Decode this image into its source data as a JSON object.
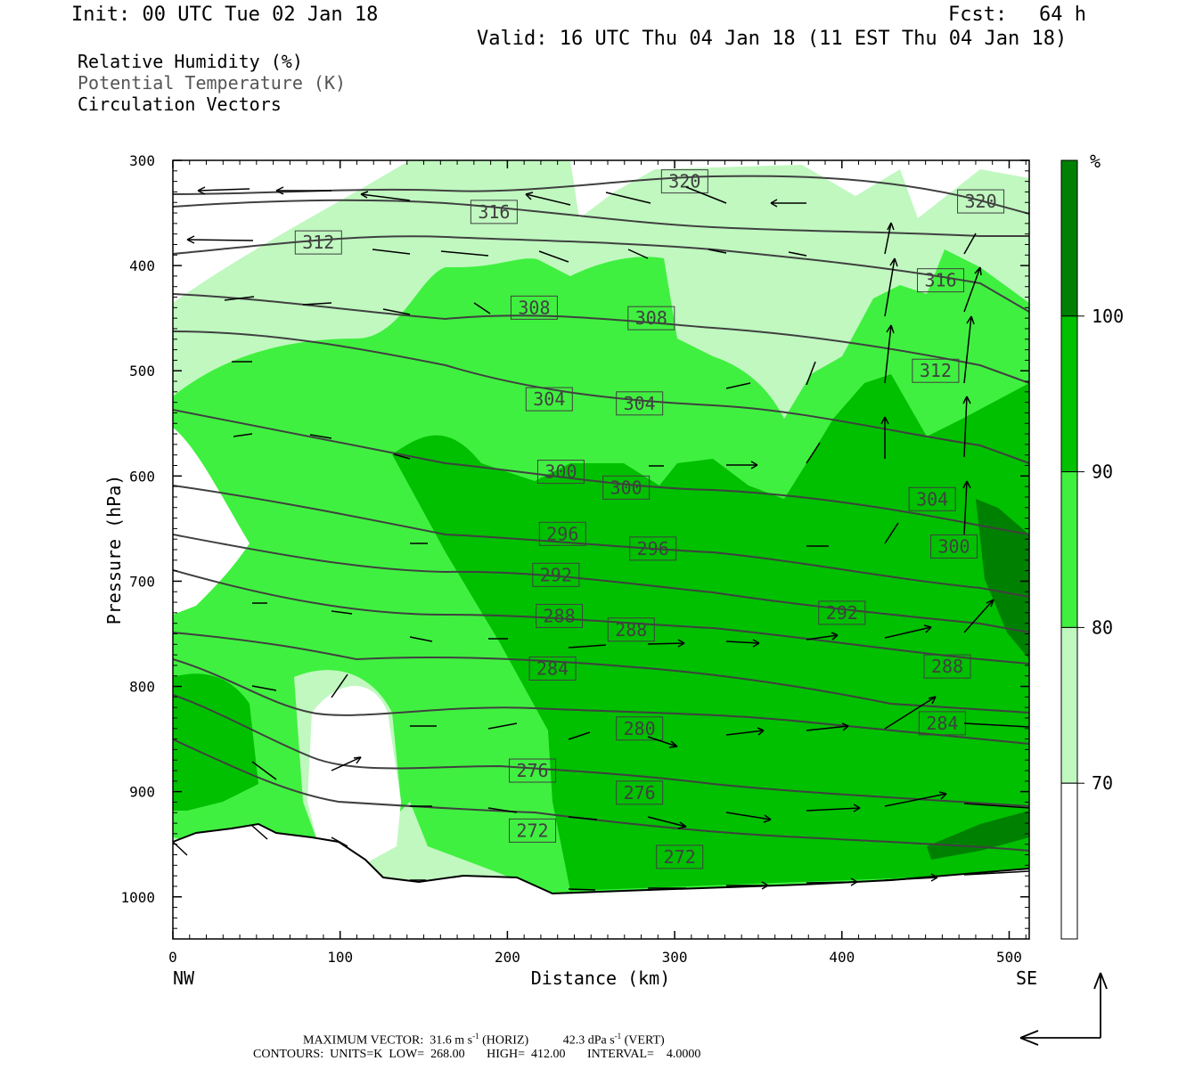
{
  "header": {
    "init": "Init: 00 UTC Tue 02 Jan 18",
    "fcst_label": "Fcst:",
    "fcst_value": "64 h",
    "valid": "Valid: 16 UTC Thu 04 Jan 18 (11 EST Thu 04 Jan 18)"
  },
  "legend": {
    "rh": "Relative Humidity (%)",
    "theta": "Potential Temperature (K)",
    "vectors": "Circulation Vectors"
  },
  "footer": {
    "max_vector_label": "MAXIMUM VECTOR:",
    "horiz_value": "31.6 m s",
    "horiz_tag": "(HORIZ)",
    "vert_value": "42.3 dPa s",
    "vert_tag": "(VERT)",
    "exponent": "-1",
    "contours_line": "CONTOURS:  UNITS=K  LOW=  268.00       HIGH=  412.00       INTERVAL=    4.0000"
  },
  "colors": {
    "rh_70_80": "#c0f8c0",
    "rh_80_90": "#40f040",
    "rh_90_100": "#00c000",
    "rh_100_plus": "#008000",
    "theta_contour": "#404040"
  },
  "chart_data": {
    "type": "heatmap",
    "title": "Relative Humidity (%)",
    "xlabel": "Distance (km)",
    "ylabel": "Pressure (hPa)",
    "xlim": [
      0,
      512
    ],
    "ylim": [
      1040,
      300
    ],
    "x_ticks": [
      "0",
      "100",
      "200",
      "300",
      "400",
      "500"
    ],
    "x_tick_values": [
      0,
      100,
      200,
      300,
      400,
      500
    ],
    "y_ticks": [
      "300",
      "400",
      "500",
      "600",
      "700",
      "800",
      "900",
      "1000"
    ],
    "y_tick_values": [
      300,
      400,
      500,
      600,
      700,
      800,
      900,
      1000
    ],
    "endpoints": {
      "left": "NW",
      "right": "SE"
    },
    "colorbar": {
      "unit": "%",
      "labels": [
        "70",
        "80",
        "90",
        "100"
      ],
      "levels": [
        70,
        80,
        90,
        100
      ],
      "colors": [
        "#ffffff",
        "#c0f8c0",
        "#40f040",
        "#00c000",
        "#008000"
      ]
    },
    "theta_contours": {
      "units": "K",
      "low": 268,
      "high": 412,
      "interval": 4,
      "labels": [
        {
          "text": "320",
          "x": 306,
          "p": 320
        },
        {
          "text": "320",
          "x": 483,
          "p": 339
        },
        {
          "text": "316",
          "x": 192,
          "p": 349
        },
        {
          "text": "316",
          "x": 459,
          "p": 414
        },
        {
          "text": "312",
          "x": 87,
          "p": 378
        },
        {
          "text": "312",
          "x": 456,
          "p": 500
        },
        {
          "text": "308",
          "x": 216,
          "p": 440
        },
        {
          "text": "308",
          "x": 286,
          "p": 450
        },
        {
          "text": "304",
          "x": 225,
          "p": 527
        },
        {
          "text": "304",
          "x": 279,
          "p": 531
        },
        {
          "text": "304",
          "x": 454,
          "p": 622
        },
        {
          "text": "300",
          "x": 232,
          "p": 596
        },
        {
          "text": "300",
          "x": 271,
          "p": 611
        },
        {
          "text": "300",
          "x": 467,
          "p": 667
        },
        {
          "text": "296",
          "x": 233,
          "p": 655
        },
        {
          "text": "296",
          "x": 287,
          "p": 669
        },
        {
          "text": "292",
          "x": 229,
          "p": 694
        },
        {
          "text": "292",
          "x": 400,
          "p": 730
        },
        {
          "text": "288",
          "x": 231,
          "p": 733
        },
        {
          "text": "288",
          "x": 274,
          "p": 746
        },
        {
          "text": "288",
          "x": 463,
          "p": 781
        },
        {
          "text": "284",
          "x": 227,
          "p": 783
        },
        {
          "text": "284",
          "x": 460,
          "p": 835
        },
        {
          "text": "280",
          "x": 279,
          "p": 840
        },
        {
          "text": "276",
          "x": 215,
          "p": 880
        },
        {
          "text": "276",
          "x": 279,
          "p": 901
        },
        {
          "text": "272",
          "x": 215,
          "p": 937
        },
        {
          "text": "272",
          "x": 303,
          "p": 962
        }
      ]
    },
    "vector_scale": {
      "max_horizontal": 31.6,
      "horizontal_units": "m s-1",
      "max_vertical": 42.3,
      "vertical_units": "dPa s-1"
    }
  }
}
